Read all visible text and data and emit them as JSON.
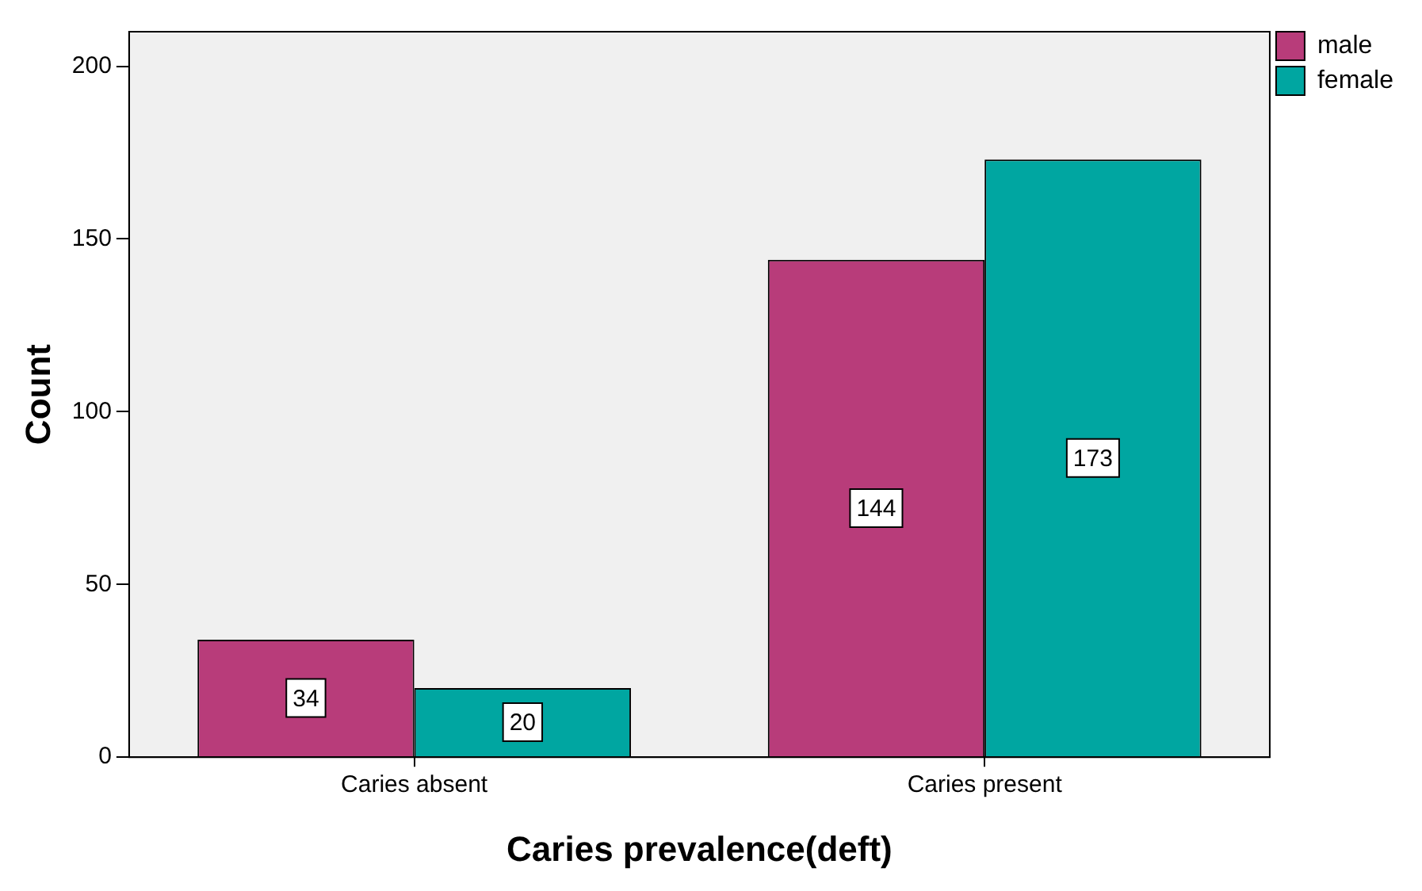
{
  "chart_data": {
    "type": "bar",
    "xlabel": "Caries prevalence(deft)",
    "ylabel": "Count",
    "categories": [
      "Caries absent",
      "Caries present"
    ],
    "series": [
      {
        "name": "male",
        "color": "#b83c7a",
        "values": [
          34,
          144
        ]
      },
      {
        "name": "female",
        "color": "#00a6a1",
        "values": [
          20,
          173
        ]
      }
    ],
    "ylim": [
      0,
      210
    ],
    "yticks": [
      0,
      50,
      100,
      150,
      200
    ],
    "data_labels": true,
    "legend": "top right"
  }
}
